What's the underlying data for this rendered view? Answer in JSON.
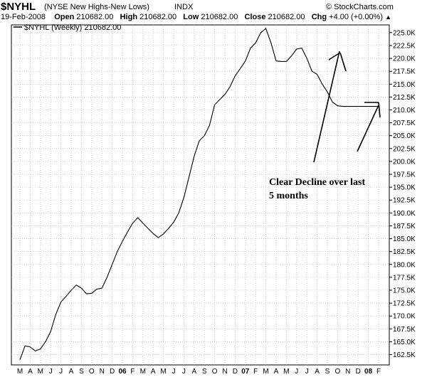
{
  "header": {
    "symbol": "$NYHL",
    "full_name": "(NYSE New Highs-New Lows)",
    "exchange": "INDX",
    "brand": "© StockCharts.com",
    "date": "19-Feb-2008",
    "open_label": "Open",
    "open_value": "210682.00",
    "high_label": "High",
    "high_value": "210682.00",
    "low_label": "Low",
    "low_value": "210682.00",
    "close_label": "Close",
    "close_value": "210682.00",
    "chg_label": "Chg",
    "chg_value": "+4.00 (+0.00%)",
    "chg_icon": "triangle-up-icon"
  },
  "legend": {
    "label": "$NYHL (Weekly) 210682.00"
  },
  "annotation": {
    "line1": "Clear Decline over last",
    "line2": "5 months"
  },
  "colors": {
    "series": "#000000",
    "grid": "#b0b0b0",
    "background": "#ffffff"
  },
  "chart_data": {
    "type": "line",
    "title": "$NYHL (NYSE New Highs-New Lows)",
    "frequency": "Weekly",
    "ylim": [
      160500,
      226500
    ],
    "y_ticks": [
      162500,
      165000,
      167500,
      170000,
      172500,
      175000,
      177500,
      180000,
      182500,
      185000,
      187500,
      190000,
      192500,
      195000,
      197500,
      200000,
      202500,
      205000,
      207500,
      210000,
      212500,
      215000,
      217500,
      220000,
      222500,
      225000
    ],
    "y_tick_labels": [
      "162.5K",
      "165.0K",
      "167.5K",
      "170.0K",
      "172.5K",
      "175.0K",
      "177.5K",
      "180.0K",
      "182.5K",
      "185.0K",
      "187.5K",
      "190.0K",
      "192.5K",
      "195.0K",
      "197.5K",
      "200.0K",
      "202.5K",
      "205.0K",
      "207.5K",
      "210.0K",
      "212.5K",
      "215.0K",
      "217.5K",
      "220.0K",
      "222.5K",
      "225.0K"
    ],
    "x_tick_labels": [
      "M",
      "A",
      "M",
      "J",
      "J",
      "A",
      "S",
      "O",
      "N",
      "D",
      "06",
      "F",
      "M",
      "A",
      "M",
      "J",
      "J",
      "A",
      "S",
      "O",
      "N",
      "D",
      "07",
      "F",
      "M",
      "A",
      "M",
      "J",
      "J",
      "A",
      "S",
      "O",
      "N",
      "D",
      "08",
      "F"
    ],
    "x_tick_bold": [
      "06",
      "07",
      "08"
    ],
    "x_tick_months": [
      0,
      1,
      2,
      3,
      4,
      5,
      6,
      7,
      8,
      9,
      10,
      11,
      12,
      13,
      14,
      15,
      16,
      17,
      18,
      19,
      20,
      21,
      22,
      23,
      24,
      25,
      26,
      27,
      28,
      29,
      30,
      31,
      32,
      33,
      34,
      35
    ],
    "grid": true,
    "legend_position": "top-left",
    "series": [
      {
        "name": "$NYHL (Weekly)",
        "x_months": [
          0,
          0.5,
          1,
          1.5,
          2,
          2.5,
          3,
          3.5,
          4,
          4.5,
          5,
          5.5,
          6,
          6.5,
          7,
          7.5,
          8,
          8.5,
          9,
          9.5,
          10,
          10.5,
          11,
          11.5,
          12,
          12.5,
          13,
          13.5,
          14,
          14.5,
          15,
          15.5,
          16,
          16.5,
          17,
          17.5,
          18,
          18.5,
          19,
          19.5,
          20,
          20.5,
          21,
          21.5,
          22,
          22.5,
          23,
          23.5,
          24,
          24.5,
          25,
          25.5,
          26,
          26.5,
          27,
          27.5,
          28,
          28.5,
          29,
          29.5,
          30,
          30.5,
          31,
          31.5,
          32,
          32.5,
          33,
          33.5,
          34,
          34.5,
          35.1
        ],
        "values": [
          161500,
          164200,
          164000,
          163200,
          163600,
          165000,
          167000,
          170300,
          172700,
          173800,
          175000,
          176000,
          175400,
          174300,
          174400,
          175200,
          175400,
          177500,
          180000,
          182500,
          184500,
          186300,
          188000,
          189100,
          188000,
          187000,
          186000,
          185200,
          185900,
          187000,
          188200,
          190000,
          193000,
          197000,
          201000,
          204000,
          205000,
          207000,
          211000,
          212000,
          213000,
          214500,
          216600,
          218000,
          219500,
          222000,
          223000,
          225000,
          225800,
          223000,
          219500,
          219400,
          219400,
          220500,
          221800,
          222000,
          220000,
          217500,
          216900,
          215000,
          213500,
          211500,
          210800,
          210682,
          210682,
          210682,
          210682,
          210682,
          210682,
          210682,
          210682
        ]
      }
    ]
  }
}
